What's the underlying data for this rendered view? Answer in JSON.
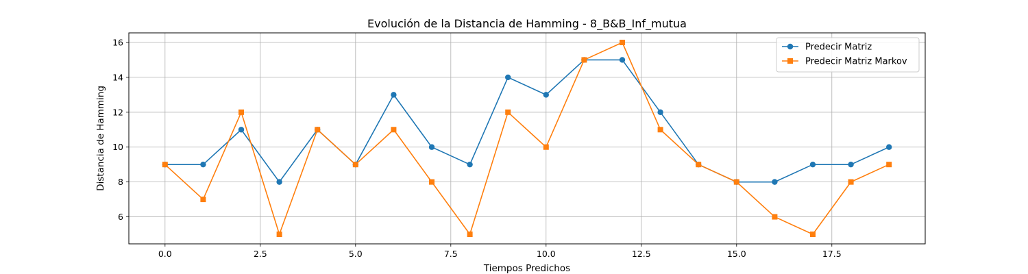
{
  "chart_data": {
    "type": "line",
    "title": "Evolución de la Distancia de Hamming - 8_B&B_Inf_mutua",
    "xlabel": "Tiempos Predichos",
    "ylabel": "Distancia de Hamming",
    "xlim": [
      -0.95,
      19.95
    ],
    "ylim": [
      4.45,
      16.55
    ],
    "xticks": [
      0.0,
      2.5,
      5.0,
      7.5,
      10.0,
      12.5,
      15.0,
      17.5
    ],
    "xtick_labels": [
      "0.0",
      "2.5",
      "5.0",
      "7.5",
      "10.0",
      "12.5",
      "15.0",
      "17.5"
    ],
    "yticks": [
      6,
      8,
      10,
      12,
      14,
      16
    ],
    "ytick_labels": [
      "6",
      "8",
      "10",
      "12",
      "14",
      "16"
    ],
    "grid": true,
    "legend_position": "top-right",
    "x": [
      0,
      1,
      2,
      3,
      4,
      5,
      6,
      7,
      8,
      9,
      10,
      11,
      12,
      13,
      14,
      15,
      16,
      17,
      18,
      19
    ],
    "series": [
      {
        "name": "Predecir Matriz",
        "marker": "circle",
        "color": "#1f77b4",
        "values": [
          9,
          9,
          11,
          8,
          11,
          9,
          13,
          10,
          9,
          14,
          13,
          15,
          15,
          12,
          9,
          8,
          8,
          9,
          9,
          10
        ]
      },
      {
        "name": "Predecir Matriz Markov",
        "marker": "square",
        "color": "#ff7f0e",
        "values": [
          9,
          7,
          12,
          5,
          11,
          9,
          11,
          8,
          5,
          12,
          10,
          15,
          16,
          11,
          9,
          8,
          6,
          5,
          8,
          9
        ]
      }
    ]
  }
}
